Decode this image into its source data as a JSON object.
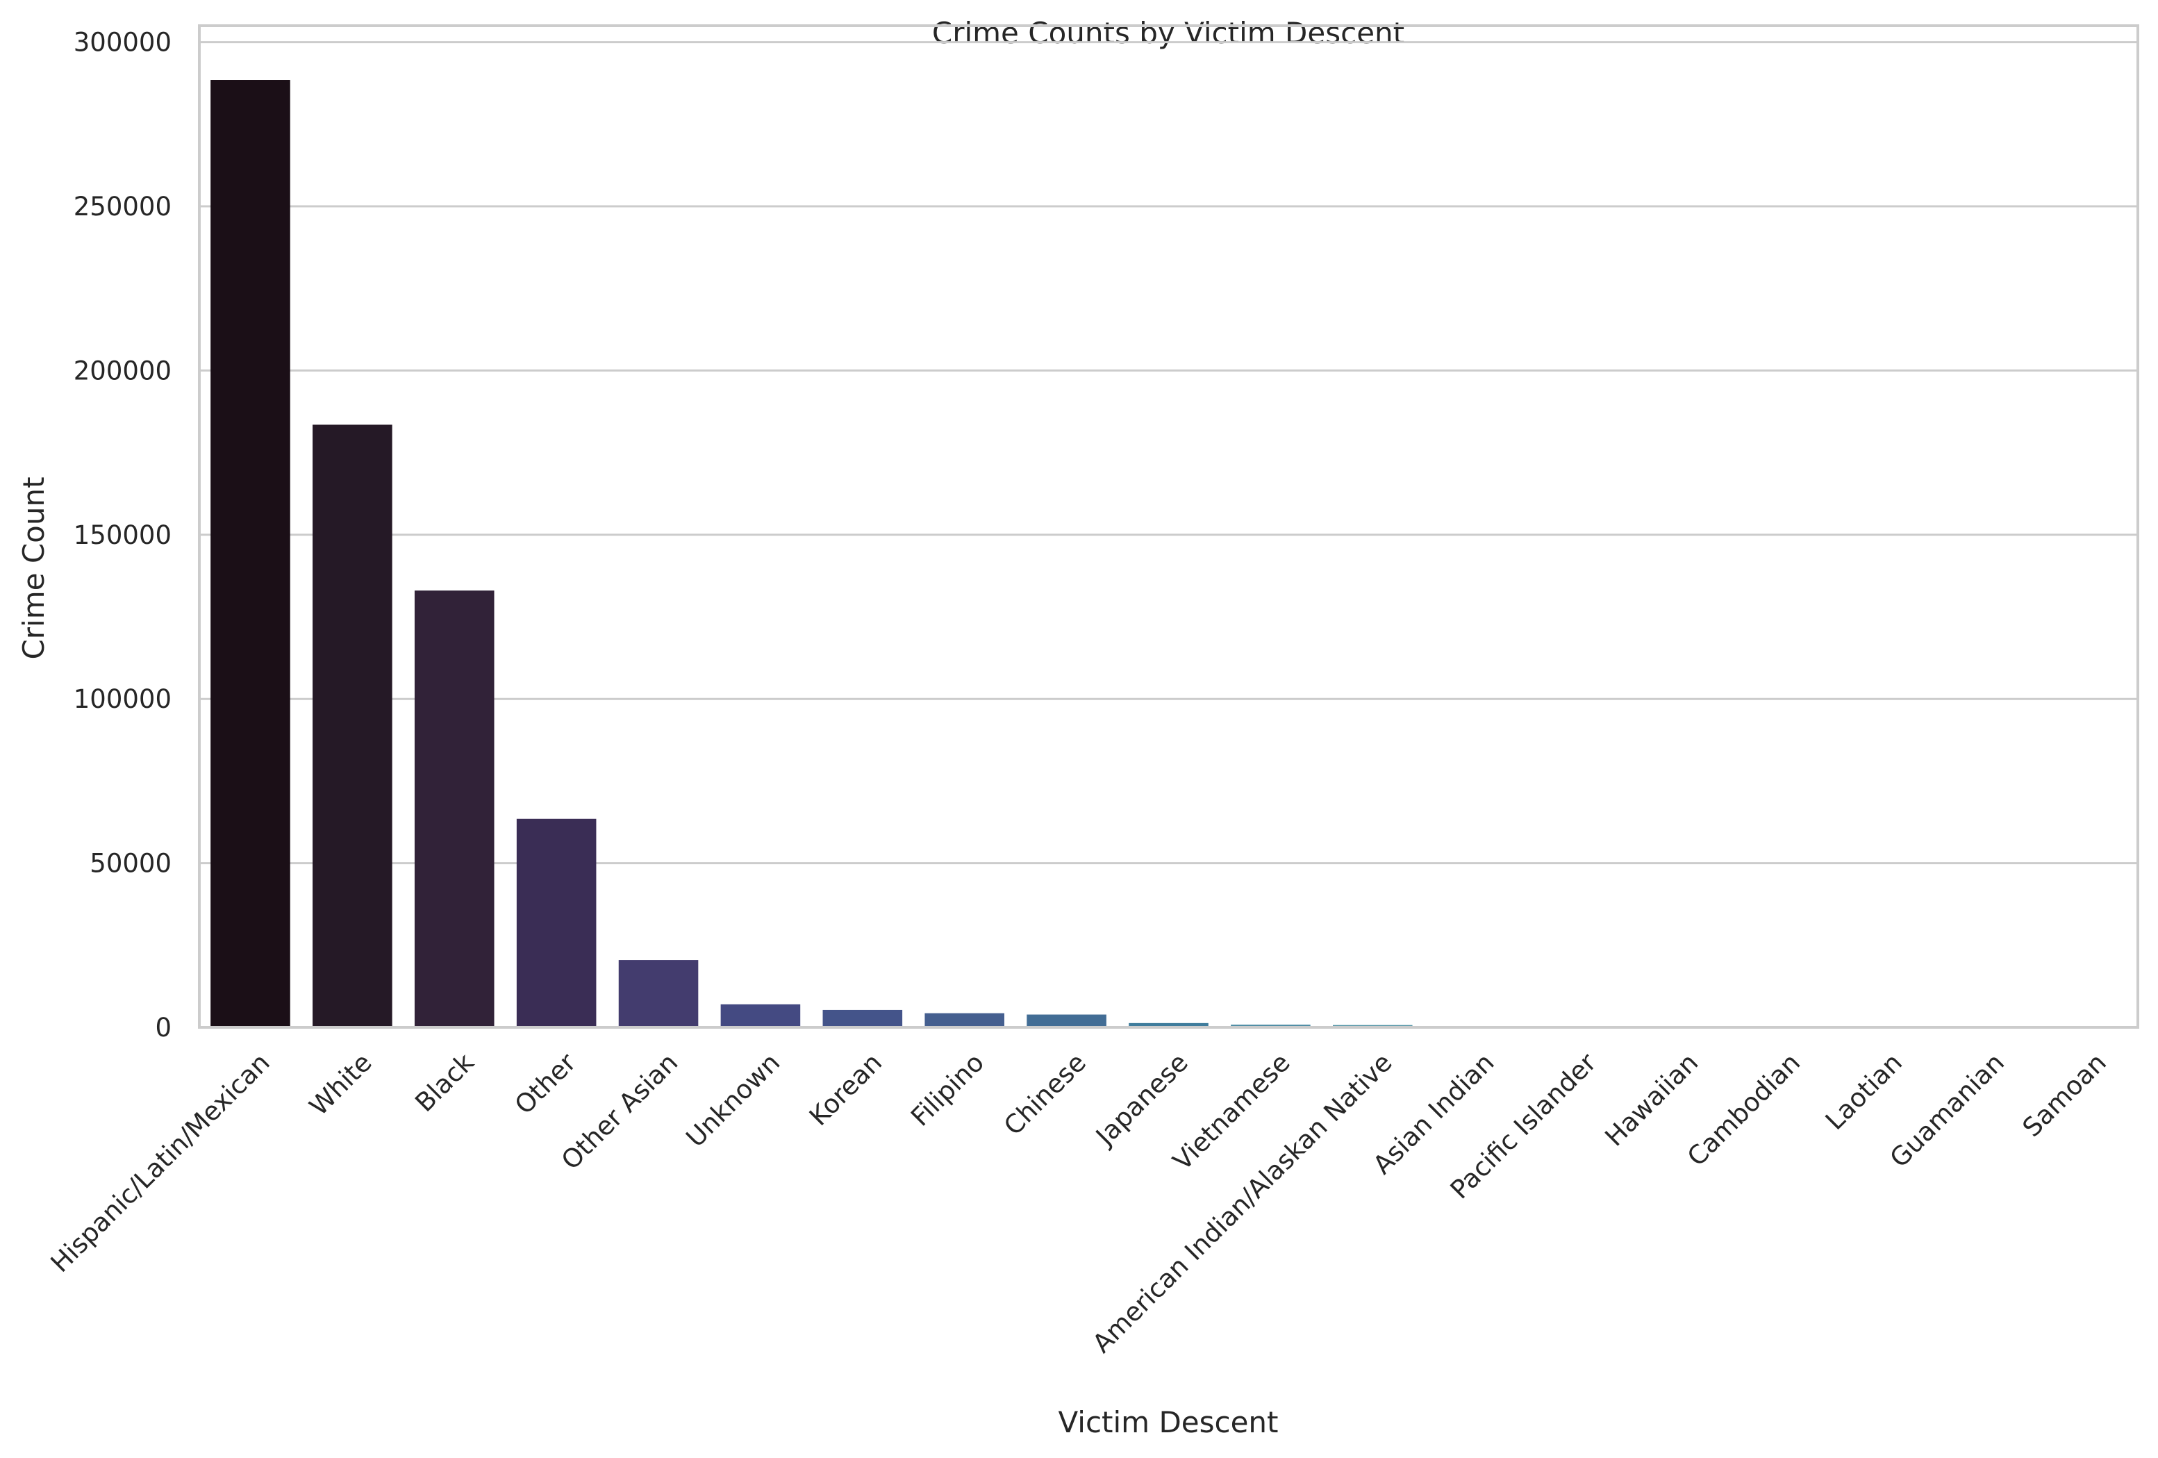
{
  "chart_data": {
    "type": "bar",
    "title": "Crime Counts by Victim Descent",
    "xlabel": "Victim Descent",
    "ylabel": "Crime Count",
    "ylim": [
      0,
      305000
    ],
    "yticks": [
      0,
      50000,
      100000,
      150000,
      200000,
      250000,
      300000
    ],
    "grid": "horizontal",
    "categories": [
      "Hispanic/Latin/Mexican",
      "White",
      "Black",
      "Other",
      "Other Asian",
      "Unknown",
      "Korean",
      "Filipino",
      "Chinese",
      "Japanese",
      "Vietnamese",
      "American Indian/Alaskan Native",
      "Asian Indian",
      "Pacific Islander",
      "Hawaiian",
      "Cambodian",
      "Laotian",
      "Guamanian",
      "Samoan"
    ],
    "values": [
      288500,
      183500,
      133000,
      63500,
      20500,
      7000,
      5300,
      4300,
      3900,
      1300,
      800,
      700,
      300,
      200,
      150,
      100,
      70,
      60,
      30
    ],
    "colors": [
      "#1b0f17",
      "#251926",
      "#312238",
      "#3a2d55",
      "#433c6e",
      "#444a82",
      "#44548a",
      "#455f8f",
      "#426d95",
      "#3f7c9c",
      "#4c8ca3",
      "#5b99a9",
      "#6ba6ae",
      "#7bb3b4",
      "#8cbfba",
      "#9ccbc0",
      "#acd6c7",
      "#bde1ce",
      "#cfebd7"
    ]
  }
}
